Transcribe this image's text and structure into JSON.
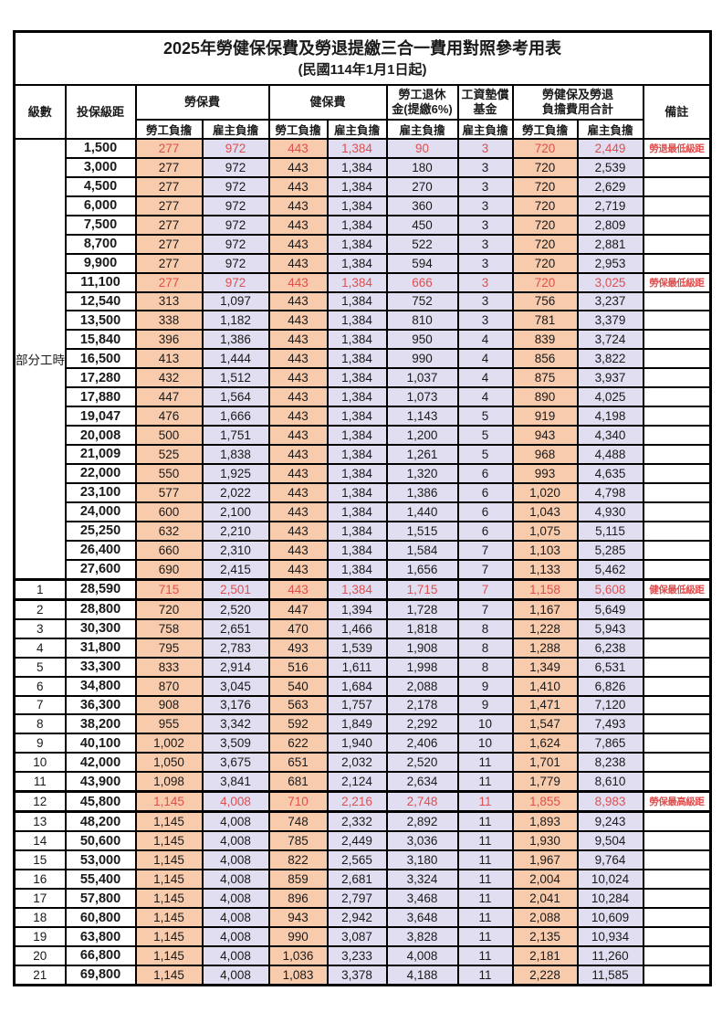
{
  "title": {
    "main": "2025年勞健保保費及勞退提繳三合一費用對照參考用表",
    "subtitle": "(民國114年1月1日起)"
  },
  "colors": {
    "employee_bg": "#F8CBAD",
    "employer_bg": "#E1DEF1",
    "highlight_text": "#E04F4F",
    "grid": "#000000"
  },
  "header": {
    "level": "級數",
    "bracket": "投保級距",
    "labor": "勞保費",
    "health": "健保費",
    "pension_l1": "勞工退休",
    "pension_l2": "金(提繳6%)",
    "wage_fund_l1": "工資墊償",
    "wage_fund_l2": "基金",
    "total_l1": "勞健保及勞退",
    "total_l2": "負擔費用合計",
    "remark": "備註",
    "employee_label": "勞工負擔",
    "employer_label": "雇主負擔"
  },
  "table": {
    "part_time_label": "部分工時",
    "part_time_rowspan": 23,
    "value_column_keys": [
      "labor-employee",
      "labor-employer",
      "health-employee",
      "health-employer",
      "pension-employer",
      "wage-fund-employer",
      "total-employee",
      "total-employer"
    ],
    "rows": [
      {
        "level": null,
        "bracket": "1,500",
        "values": [
          "277",
          "972",
          "443",
          "1,384",
          "90",
          "3",
          "720",
          "2,449"
        ],
        "remark": "勞退最低級距",
        "highlight": true
      },
      {
        "level": null,
        "bracket": "3,000",
        "values": [
          "277",
          "972",
          "443",
          "1,384",
          "180",
          "3",
          "720",
          "2,539"
        ],
        "remark": "",
        "highlight": false
      },
      {
        "level": null,
        "bracket": "4,500",
        "values": [
          "277",
          "972",
          "443",
          "1,384",
          "270",
          "3",
          "720",
          "2,629"
        ],
        "remark": "",
        "highlight": false
      },
      {
        "level": null,
        "bracket": "6,000",
        "values": [
          "277",
          "972",
          "443",
          "1,384",
          "360",
          "3",
          "720",
          "2,719"
        ],
        "remark": "",
        "highlight": false
      },
      {
        "level": null,
        "bracket": "7,500",
        "values": [
          "277",
          "972",
          "443",
          "1,384",
          "450",
          "3",
          "720",
          "2,809"
        ],
        "remark": "",
        "highlight": false
      },
      {
        "level": null,
        "bracket": "8,700",
        "values": [
          "277",
          "972",
          "443",
          "1,384",
          "522",
          "3",
          "720",
          "2,881"
        ],
        "remark": "",
        "highlight": false
      },
      {
        "level": null,
        "bracket": "9,900",
        "values": [
          "277",
          "972",
          "443",
          "1,384",
          "594",
          "3",
          "720",
          "2,953"
        ],
        "remark": "",
        "highlight": false
      },
      {
        "level": null,
        "bracket": "11,100",
        "values": [
          "277",
          "972",
          "443",
          "1,384",
          "666",
          "3",
          "720",
          "3,025"
        ],
        "remark": "勞保最低級距",
        "highlight": true
      },
      {
        "level": null,
        "bracket": "12,540",
        "values": [
          "313",
          "1,097",
          "443",
          "1,384",
          "752",
          "3",
          "756",
          "3,237"
        ],
        "remark": "",
        "highlight": false
      },
      {
        "level": null,
        "bracket": "13,500",
        "values": [
          "338",
          "1,182",
          "443",
          "1,384",
          "810",
          "3",
          "781",
          "3,379"
        ],
        "remark": "",
        "highlight": false
      },
      {
        "level": null,
        "bracket": "15,840",
        "values": [
          "396",
          "1,386",
          "443",
          "1,384",
          "950",
          "4",
          "839",
          "3,724"
        ],
        "remark": "",
        "highlight": false
      },
      {
        "level": null,
        "bracket": "16,500",
        "values": [
          "413",
          "1,444",
          "443",
          "1,384",
          "990",
          "4",
          "856",
          "3,822"
        ],
        "remark": "",
        "highlight": false
      },
      {
        "level": null,
        "bracket": "17,280",
        "values": [
          "432",
          "1,512",
          "443",
          "1,384",
          "1,037",
          "4",
          "875",
          "3,937"
        ],
        "remark": "",
        "highlight": false
      },
      {
        "level": null,
        "bracket": "17,880",
        "values": [
          "447",
          "1,564",
          "443",
          "1,384",
          "1,073",
          "4",
          "890",
          "4,025"
        ],
        "remark": "",
        "highlight": false
      },
      {
        "level": null,
        "bracket": "19,047",
        "values": [
          "476",
          "1,666",
          "443",
          "1,384",
          "1,143",
          "5",
          "919",
          "4,198"
        ],
        "remark": "",
        "highlight": false
      },
      {
        "level": null,
        "bracket": "20,008",
        "values": [
          "500",
          "1,751",
          "443",
          "1,384",
          "1,200",
          "5",
          "943",
          "4,340"
        ],
        "remark": "",
        "highlight": false
      },
      {
        "level": null,
        "bracket": "21,009",
        "values": [
          "525",
          "1,838",
          "443",
          "1,384",
          "1,261",
          "5",
          "968",
          "4,488"
        ],
        "remark": "",
        "highlight": false
      },
      {
        "level": null,
        "bracket": "22,000",
        "values": [
          "550",
          "1,925",
          "443",
          "1,384",
          "1,320",
          "6",
          "993",
          "4,635"
        ],
        "remark": "",
        "highlight": false
      },
      {
        "level": null,
        "bracket": "23,100",
        "values": [
          "577",
          "2,022",
          "443",
          "1,384",
          "1,386",
          "6",
          "1,020",
          "4,798"
        ],
        "remark": "",
        "highlight": false
      },
      {
        "level": null,
        "bracket": "24,000",
        "values": [
          "600",
          "2,100",
          "443",
          "1,384",
          "1,440",
          "6",
          "1,043",
          "4,930"
        ],
        "remark": "",
        "highlight": false
      },
      {
        "level": null,
        "bracket": "25,250",
        "values": [
          "632",
          "2,210",
          "443",
          "1,384",
          "1,515",
          "6",
          "1,075",
          "5,115"
        ],
        "remark": "",
        "highlight": false
      },
      {
        "level": null,
        "bracket": "26,400",
        "values": [
          "660",
          "2,310",
          "443",
          "1,384",
          "1,584",
          "7",
          "1,103",
          "5,285"
        ],
        "remark": "",
        "highlight": false
      },
      {
        "level": null,
        "bracket": "27,600",
        "values": [
          "690",
          "2,415",
          "443",
          "1,384",
          "1,656",
          "7",
          "1,133",
          "5,462"
        ],
        "remark": "",
        "highlight": false
      },
      {
        "level": "1",
        "bracket": "28,590",
        "values": [
          "715",
          "2,501",
          "443",
          "1,384",
          "1,715",
          "7",
          "1,158",
          "5,608"
        ],
        "remark": "健保最低級距",
        "highlight": true
      },
      {
        "level": "2",
        "bracket": "28,800",
        "values": [
          "720",
          "2,520",
          "447",
          "1,394",
          "1,728",
          "7",
          "1,167",
          "5,649"
        ],
        "remark": "",
        "highlight": false
      },
      {
        "level": "3",
        "bracket": "30,300",
        "values": [
          "758",
          "2,651",
          "470",
          "1,466",
          "1,818",
          "8",
          "1,228",
          "5,943"
        ],
        "remark": "",
        "highlight": false
      },
      {
        "level": "4",
        "bracket": "31,800",
        "values": [
          "795",
          "2,783",
          "493",
          "1,539",
          "1,908",
          "8",
          "1,288",
          "6,238"
        ],
        "remark": "",
        "highlight": false
      },
      {
        "level": "5",
        "bracket": "33,300",
        "values": [
          "833",
          "2,914",
          "516",
          "1,611",
          "1,998",
          "8",
          "1,349",
          "6,531"
        ],
        "remark": "",
        "highlight": false
      },
      {
        "level": "6",
        "bracket": "34,800",
        "values": [
          "870",
          "3,045",
          "540",
          "1,684",
          "2,088",
          "9",
          "1,410",
          "6,826"
        ],
        "remark": "",
        "highlight": false
      },
      {
        "level": "7",
        "bracket": "36,300",
        "values": [
          "908",
          "3,176",
          "563",
          "1,757",
          "2,178",
          "9",
          "1,471",
          "7,120"
        ],
        "remark": "",
        "highlight": false
      },
      {
        "level": "8",
        "bracket": "38,200",
        "values": [
          "955",
          "3,342",
          "592",
          "1,849",
          "2,292",
          "10",
          "1,547",
          "7,493"
        ],
        "remark": "",
        "highlight": false
      },
      {
        "level": "9",
        "bracket": "40,100",
        "values": [
          "1,002",
          "3,509",
          "622",
          "1,940",
          "2,406",
          "10",
          "1,624",
          "7,865"
        ],
        "remark": "",
        "highlight": false
      },
      {
        "level": "10",
        "bracket": "42,000",
        "values": [
          "1,050",
          "3,675",
          "651",
          "2,032",
          "2,520",
          "11",
          "1,701",
          "8,238"
        ],
        "remark": "",
        "highlight": false
      },
      {
        "level": "11",
        "bracket": "43,900",
        "values": [
          "1,098",
          "3,841",
          "681",
          "2,124",
          "2,634",
          "11",
          "1,779",
          "8,610"
        ],
        "remark": "",
        "highlight": false
      },
      {
        "level": "12",
        "bracket": "45,800",
        "values": [
          "1,145",
          "4,008",
          "710",
          "2,216",
          "2,748",
          "11",
          "1,855",
          "8,983"
        ],
        "remark": "勞保最高級距",
        "highlight": true
      },
      {
        "level": "13",
        "bracket": "48,200",
        "values": [
          "1,145",
          "4,008",
          "748",
          "2,332",
          "2,892",
          "11",
          "1,893",
          "9,243"
        ],
        "remark": "",
        "highlight": false
      },
      {
        "level": "14",
        "bracket": "50,600",
        "values": [
          "1,145",
          "4,008",
          "785",
          "2,449",
          "3,036",
          "11",
          "1,930",
          "9,504"
        ],
        "remark": "",
        "highlight": false
      },
      {
        "level": "15",
        "bracket": "53,000",
        "values": [
          "1,145",
          "4,008",
          "822",
          "2,565",
          "3,180",
          "11",
          "1,967",
          "9,764"
        ],
        "remark": "",
        "highlight": false
      },
      {
        "level": "16",
        "bracket": "55,400",
        "values": [
          "1,145",
          "4,008",
          "859",
          "2,681",
          "3,324",
          "11",
          "2,004",
          "10,024"
        ],
        "remark": "",
        "highlight": false
      },
      {
        "level": "17",
        "bracket": "57,800",
        "values": [
          "1,145",
          "4,008",
          "896",
          "2,797",
          "3,468",
          "11",
          "2,041",
          "10,284"
        ],
        "remark": "",
        "highlight": false
      },
      {
        "level": "18",
        "bracket": "60,800",
        "values": [
          "1,145",
          "4,008",
          "943",
          "2,942",
          "3,648",
          "11",
          "2,088",
          "10,609"
        ],
        "remark": "",
        "highlight": false
      },
      {
        "level": "19",
        "bracket": "63,800",
        "values": [
          "1,145",
          "4,008",
          "990",
          "3,087",
          "3,828",
          "11",
          "2,135",
          "10,934"
        ],
        "remark": "",
        "highlight": false
      },
      {
        "level": "20",
        "bracket": "66,800",
        "values": [
          "1,145",
          "4,008",
          "1,036",
          "3,233",
          "4,008",
          "11",
          "2,181",
          "11,260"
        ],
        "remark": "",
        "highlight": false
      },
      {
        "level": "21",
        "bracket": "69,800",
        "values": [
          "1,145",
          "4,008",
          "1,083",
          "3,378",
          "4,188",
          "11",
          "2,228",
          "11,585"
        ],
        "remark": "",
        "highlight": false
      }
    ]
  }
}
